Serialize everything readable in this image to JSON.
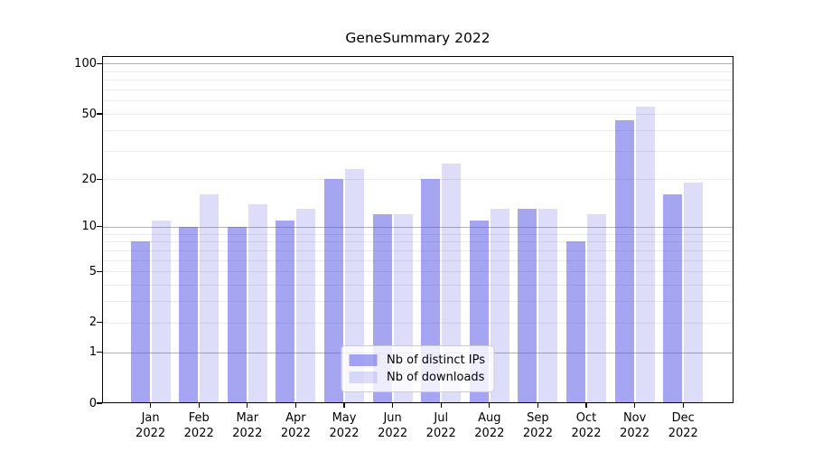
{
  "title": "GeneSummary 2022",
  "chart_data": {
    "type": "bar",
    "title": "GeneSummary 2022",
    "yscale": "log1p",
    "ylim": [
      0,
      111
    ],
    "grid": true,
    "legend_position": "lower center",
    "x_tick_labels": [
      [
        "Jan",
        "2022"
      ],
      [
        "Feb",
        "2022"
      ],
      [
        "Mar",
        "2022"
      ],
      [
        "Apr",
        "2022"
      ],
      [
        "May",
        "2022"
      ],
      [
        "Jun",
        "2022"
      ],
      [
        "Jul",
        "2022"
      ],
      [
        "Aug",
        "2022"
      ],
      [
        "Sep",
        "2022"
      ],
      [
        "Oct",
        "2022"
      ],
      [
        "Nov",
        "2022"
      ],
      [
        "Dec",
        "2022"
      ]
    ],
    "y_tick_values": [
      0,
      1,
      2,
      5,
      10,
      20,
      50,
      100
    ],
    "y_tick_labels": [
      "0",
      "1",
      "2",
      "5",
      "10",
      "20",
      "50",
      "100"
    ],
    "grid_major_values": [
      1,
      10,
      100
    ],
    "grid_minor_values": [
      2,
      3,
      4,
      5,
      6,
      7,
      8,
      9,
      20,
      30,
      40,
      50,
      60,
      70,
      80,
      90
    ],
    "series": [
      {
        "name": "Nb of distinct IPs",
        "color": "rgba(76,76,230,0.50)",
        "values": [
          8,
          10,
          10,
          11,
          20,
          12,
          20,
          11,
          13,
          8,
          46,
          16
        ]
      },
      {
        "name": "Nb of downloads",
        "color": "rgba(76,76,230,0.19)",
        "values": [
          11,
          16,
          14,
          13,
          23,
          12,
          25,
          13,
          13,
          12,
          55,
          19
        ]
      }
    ]
  },
  "colors": {
    "background": "#ffffff",
    "grid_minor": "#ebebeb",
    "grid_major": "#b2b2b2",
    "spine": "#000000",
    "text": "#000000",
    "legend_border": "#cccccc",
    "legend_background": "rgba(255,255,255,0.8)"
  }
}
